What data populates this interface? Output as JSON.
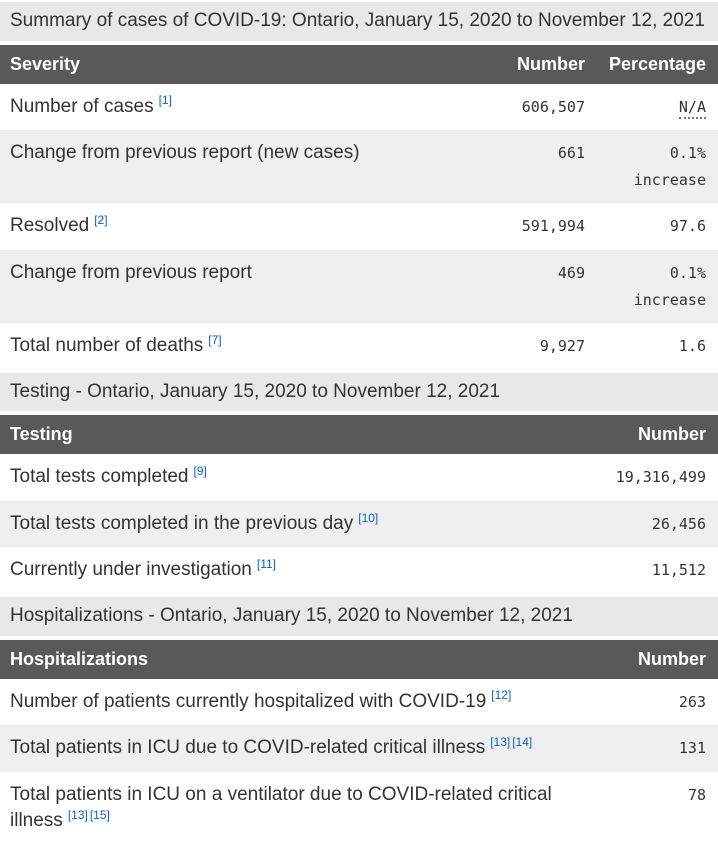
{
  "colors": {
    "header_bg": "#595959",
    "header_text": "#ffffff",
    "zebra_row_bg": "#efefef",
    "caption_bg": "#e8e8e8",
    "body_text": "#333333",
    "footnote_link_blue": "#0b62c4"
  },
  "tables": [
    {
      "caption": "Summary of cases of COVID-19: Ontario, January 15, 2020 to November 12, 2021",
      "columns": {
        "label": "Severity",
        "number": "Number",
        "percentage": "Percentage"
      },
      "rows": [
        {
          "label": "Number of cases",
          "refs": [
            "[1]"
          ],
          "number": "606,507",
          "percentage": "N/A"
        },
        {
          "label": "Change from previous report (new cases)",
          "refs": [],
          "number": "661",
          "percentage": "0.1% increase"
        },
        {
          "label": "Resolved",
          "refs": [
            "[2]"
          ],
          "number": "591,994",
          "percentage": "97.6"
        },
        {
          "label": "Change from previous report",
          "refs": [],
          "number": "469",
          "percentage": "0.1% increase"
        },
        {
          "label": "Total number of deaths",
          "refs": [
            "[7]"
          ],
          "number": "9,927",
          "percentage": "1.6"
        }
      ]
    },
    {
      "caption": "Testing - Ontario, January 15, 2020 to November 12, 2021",
      "columns": {
        "label": "Testing",
        "number": "Number"
      },
      "rows": [
        {
          "label": "Total tests completed",
          "refs": [
            "[9]"
          ],
          "number": "19,316,499"
        },
        {
          "label": "Total tests completed in the previous day",
          "refs": [
            "[10]"
          ],
          "number": "26,456"
        },
        {
          "label": "Currently under investigation",
          "refs": [
            "[11]"
          ],
          "number": "11,512"
        }
      ]
    },
    {
      "caption": "Hospitalizations - Ontario, January 15, 2020 to November 12, 2021",
      "columns": {
        "label": "Hospitalizations",
        "number": "Number"
      },
      "rows": [
        {
          "label": "Number of patients currently hospitalized with COVID-19",
          "refs": [
            "[12]"
          ],
          "number": "263"
        },
        {
          "label": "Total patients in ICU due to COVID-related critical illness",
          "refs": [
            "[13]",
            "[14]"
          ],
          "number": "131"
        },
        {
          "label": "Total patients in ICU on a ventilator due to COVID-related critical illness",
          "refs": [
            "[13]",
            "[15]"
          ],
          "number": "78"
        }
      ]
    }
  ]
}
